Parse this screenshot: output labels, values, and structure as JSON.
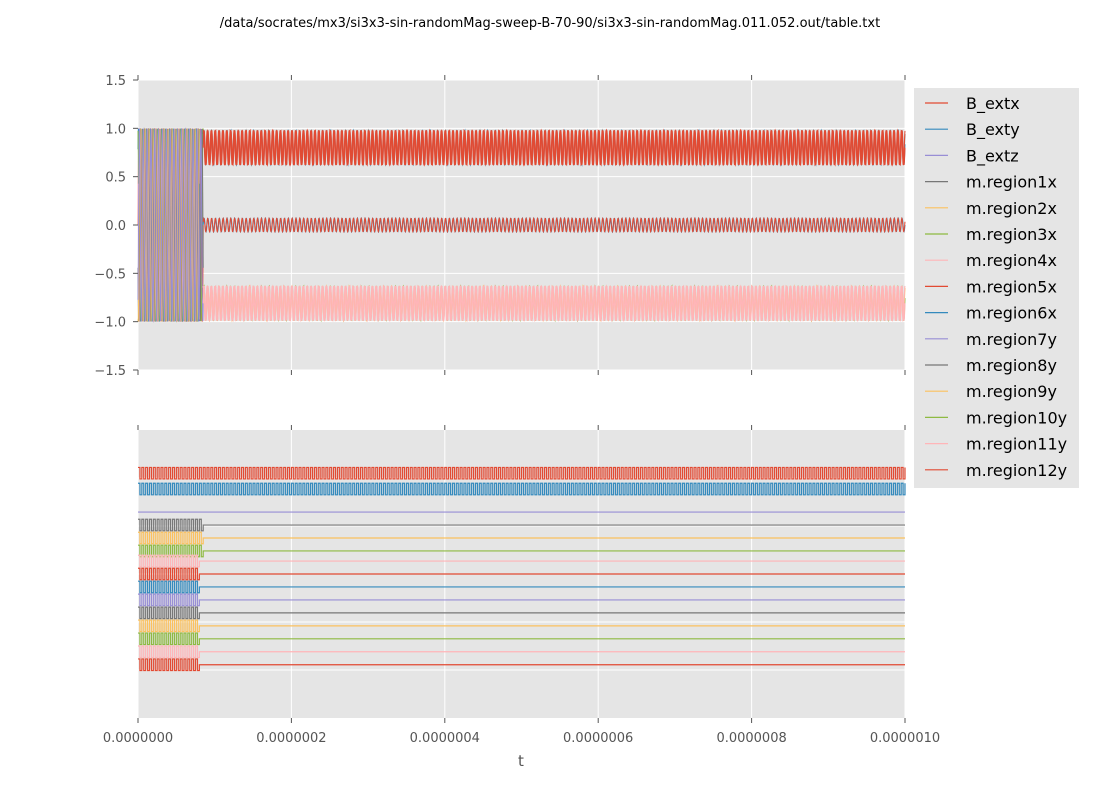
{
  "chart_data": [
    {
      "type": "line",
      "panel": "top",
      "title": "/data/socrates/mx3/si3x3-sin-randomMag-sweep-B-70-90/si3x3-sin-randomMag.011.052.out/table.txt",
      "xlabel": "",
      "ylabel": "",
      "xlim": [
        0,
        1e-06
      ],
      "ylim": [
        -1.5,
        1.5
      ],
      "yticks": [
        "1.5",
        "1.0",
        "0.5",
        "0.0",
        "−0.5",
        "−1.0",
        "−1.5"
      ],
      "ytick_values": [
        1.5,
        1.0,
        0.5,
        0.0,
        -0.5,
        -1.0,
        -1.5
      ],
      "grid": true,
      "background": "#e5e5e5",
      "oscillation_period_s": 5e-09,
      "transition_time_s": 8.5e-08,
      "bands": [
        {
          "name": "upper-band",
          "before_transition": [
            -1.0,
            1.0
          ],
          "after_transition": [
            0.62,
            0.98
          ],
          "colors": [
            "#E24A33",
            "#348ABD"
          ]
        },
        {
          "name": "middle-band",
          "after_transition": [
            -0.07,
            0.07
          ],
          "colors": [
            "#348ABD",
            "#E24A33"
          ]
        },
        {
          "name": "lower-band",
          "after_transition": [
            -1.0,
            -0.62
          ],
          "colors": [
            "#FFB5B8",
            "#8EBA42",
            "#FBC15E"
          ]
        }
      ]
    },
    {
      "type": "line",
      "panel": "bottom",
      "xlabel": "t",
      "ylabel": "",
      "xlim": [
        0,
        1e-06
      ],
      "xticks": [
        "0.0000000",
        "0.0000002",
        "0.0000004",
        "0.0000006",
        "0.0000008",
        "0.0000010"
      ],
      "xtick_values": [
        0,
        2e-07,
        4e-07,
        6e-07,
        8e-07,
        1e-06
      ],
      "grid": true,
      "background": "#e5e5e5",
      "note": "Each series drawn as a vertically offset trace (no y tick labels).",
      "traces": [
        {
          "series": "B_extx",
          "color": "#E24A33",
          "level": 0.85,
          "amp": 0.04,
          "osc_until": 1e-06
        },
        {
          "series": "B_exty",
          "color": "#348ABD",
          "level": 0.795,
          "amp": 0.04,
          "osc_until": 1e-06
        },
        {
          "series": "B_extz",
          "color": "#988ED5",
          "level": 0.715,
          "amp": 0.0,
          "osc_until": 0
        },
        {
          "series": "m.region1x",
          "color": "#777777",
          "level": 0.67,
          "amp": 0.04,
          "osc_until": 8.5e-08
        },
        {
          "series": "m.region2x",
          "color": "#FBC15E",
          "level": 0.625,
          "amp": 0.04,
          "osc_until": 8.5e-08
        },
        {
          "series": "m.region3x",
          "color": "#8EBA42",
          "level": 0.58,
          "amp": 0.04,
          "osc_until": 8.5e-08
        },
        {
          "series": "m.region4x",
          "color": "#FFB5B8",
          "level": 0.545,
          "amp": 0.04,
          "osc_until": 8e-08
        },
        {
          "series": "m.region5x",
          "color": "#E24A33",
          "level": 0.5,
          "amp": 0.04,
          "osc_until": 8e-08
        },
        {
          "series": "m.region6x",
          "color": "#348ABD",
          "level": 0.455,
          "amp": 0.04,
          "osc_until": 8e-08
        },
        {
          "series": "m.region7y",
          "color": "#988ED5",
          "level": 0.41,
          "amp": 0.04,
          "osc_until": 8e-08
        },
        {
          "series": "m.region8y",
          "color": "#777777",
          "level": 0.365,
          "amp": 0.04,
          "osc_until": 8e-08
        },
        {
          "series": "m.region9y",
          "color": "#FBC15E",
          "level": 0.32,
          "amp": 0.04,
          "osc_until": 8e-08
        },
        {
          "series": "m.region10y",
          "color": "#8EBA42",
          "level": 0.275,
          "amp": 0.04,
          "osc_until": 8e-08
        },
        {
          "series": "m.region11y",
          "color": "#FFB5B8",
          "level": 0.23,
          "amp": 0.04,
          "osc_until": 8e-08
        },
        {
          "series": "m.region12y",
          "color": "#E24A33",
          "level": 0.185,
          "amp": 0.04,
          "osc_until": 8e-08
        }
      ]
    }
  ],
  "legend": {
    "placement": "right, outside top axes",
    "entries": [
      {
        "label": "B_extx",
        "color": "#E24A33"
      },
      {
        "label": "B_exty",
        "color": "#348ABD"
      },
      {
        "label": "B_extz",
        "color": "#988ED5"
      },
      {
        "label": "m.region1x",
        "color": "#777777"
      },
      {
        "label": "m.region2x",
        "color": "#FBC15E"
      },
      {
        "label": "m.region3x",
        "color": "#8EBA42"
      },
      {
        "label": "m.region4x",
        "color": "#FFB5B8"
      },
      {
        "label": "m.region5x",
        "color": "#E24A33"
      },
      {
        "label": "m.region6x",
        "color": "#348ABD"
      },
      {
        "label": "m.region7y",
        "color": "#988ED5"
      },
      {
        "label": "m.region8y",
        "color": "#777777"
      },
      {
        "label": "m.region9y",
        "color": "#FBC15E"
      },
      {
        "label": "m.region10y",
        "color": "#8EBA42"
      },
      {
        "label": "m.region11y",
        "color": "#FFB5B8"
      },
      {
        "label": "m.region12y",
        "color": "#E24A33"
      }
    ]
  }
}
